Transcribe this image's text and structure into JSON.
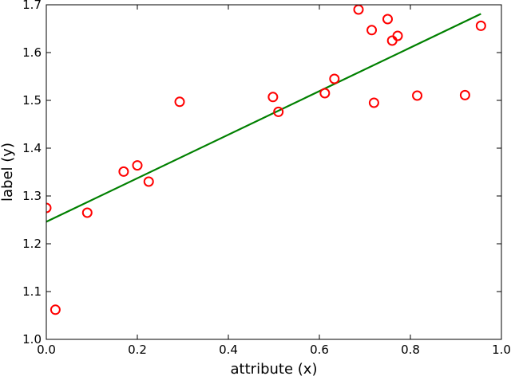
{
  "chart_data": {
    "type": "scatter",
    "xlabel": "attribute (x)",
    "ylabel": "label (y)",
    "xlim": [
      0.0,
      1.0
    ],
    "ylim": [
      1.0,
      1.7
    ],
    "xticks": [
      "0.0",
      "0.2",
      "0.4",
      "0.6",
      "0.8",
      "1.0"
    ],
    "yticks": [
      "1.0",
      "1.1",
      "1.2",
      "1.3",
      "1.4",
      "1.5",
      "1.6",
      "1.7"
    ],
    "grid": false,
    "series": [
      {
        "kind": "scatter",
        "marker": "open-circle",
        "color": "#ff0000",
        "points": [
          [
            0.0,
            1.275
          ],
          [
            0.02,
            1.062
          ],
          [
            0.09,
            1.265
          ],
          [
            0.17,
            1.351
          ],
          [
            0.2,
            1.364
          ],
          [
            0.225,
            1.33
          ],
          [
            0.293,
            1.497
          ],
          [
            0.498,
            1.507
          ],
          [
            0.51,
            1.476
          ],
          [
            0.612,
            1.515
          ],
          [
            0.633,
            1.545
          ],
          [
            0.686,
            1.69
          ],
          [
            0.715,
            1.647
          ],
          [
            0.72,
            1.495
          ],
          [
            0.75,
            1.67
          ],
          [
            0.76,
            1.625
          ],
          [
            0.772,
            1.635
          ],
          [
            0.815,
            1.51
          ],
          [
            0.92,
            1.511
          ],
          [
            0.955,
            1.656
          ]
        ]
      },
      {
        "kind": "line",
        "color": "#008000",
        "points": [
          [
            0.0,
            1.246
          ],
          [
            0.955,
            1.681
          ]
        ]
      }
    ]
  }
}
